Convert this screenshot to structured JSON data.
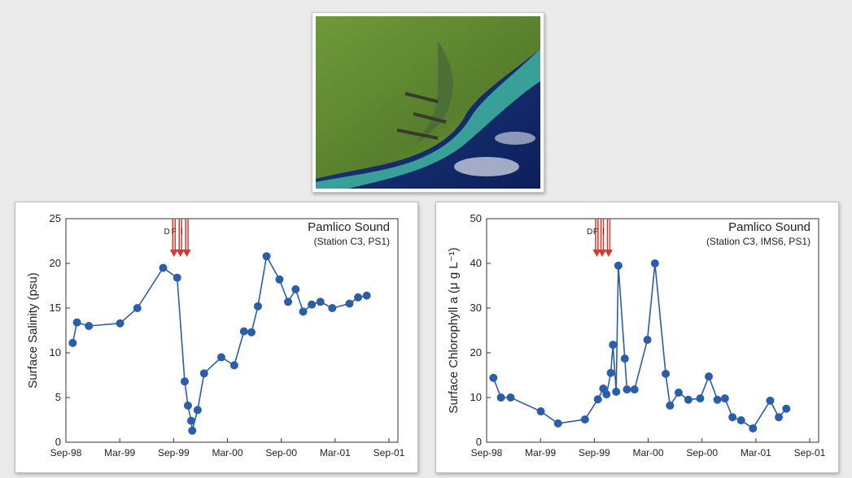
{
  "chart_data": [
    {
      "type": "line",
      "title": "Pamlico Sound",
      "subtitle": "(Station C3, PS1)",
      "ylabel": "Surface Salinity (psu)",
      "x": [
        1998.73,
        1998.77,
        1998.88,
        1999.17,
        1999.33,
        1999.57,
        1999.7,
        1999.77,
        1999.8,
        1999.83,
        1999.84,
        1999.89,
        1999.95,
        2000.11,
        2000.23,
        2000.32,
        2000.39,
        2000.45,
        2000.53,
        2000.65,
        2000.73,
        2000.8,
        2000.87,
        2000.95,
        2001.03,
        2001.14,
        2001.3,
        2001.38,
        2001.46
      ],
      "values": [
        11.1,
        13.4,
        13.0,
        13.3,
        15.0,
        19.5,
        18.4,
        6.8,
        4.1,
        2.4,
        1.3,
        3.6,
        7.7,
        9.5,
        8.6,
        12.4,
        12.3,
        15.2,
        20.8,
        18.2,
        15.7,
        17.1,
        14.6,
        15.4,
        15.7,
        15.0,
        15.5,
        16.2,
        16.4
      ],
      "color": "#2a5ea8",
      "xlim": [
        1998.667,
        2001.75
      ],
      "xticks": [
        {
          "value": 1998.667,
          "label": "Sep-98"
        },
        {
          "value": 1999.167,
          "label": "Mar-99"
        },
        {
          "value": 1999.667,
          "label": "Sep-99"
        },
        {
          "value": 2000.167,
          "label": "Mar-00"
        },
        {
          "value": 2000.667,
          "label": "Sep-00"
        },
        {
          "value": 2001.167,
          "label": "Mar-01"
        },
        {
          "value": 2001.667,
          "label": "Sep-01"
        }
      ],
      "ylim": [
        0,
        25
      ],
      "yticks": [
        0,
        5,
        10,
        15,
        20,
        25
      ],
      "annotations": [
        {
          "text": "D",
          "x": 1999.67
        },
        {
          "text": "F",
          "x": 1999.73
        },
        {
          "text": "I",
          "x": 1999.79
        }
      ]
    },
    {
      "type": "line",
      "title": "Pamlico Sound",
      "subtitle": "(Station C3, IMS6, PS1)",
      "ylabel": "Surface Chlorophyll a (μ g L⁻¹)",
      "x": [
        1998.73,
        1998.8,
        1998.89,
        1999.17,
        1999.33,
        1999.58,
        1999.7,
        1999.75,
        1999.78,
        1999.82,
        1999.84,
        1999.87,
        1999.89,
        1999.95,
        1999.97,
        2000.04,
        2000.16,
        2000.23,
        2000.33,
        2000.37,
        2000.45,
        2000.54,
        2000.65,
        2000.73,
        2000.81,
        2000.88,
        2000.95,
        2001.03,
        2001.14,
        2001.3,
        2001.38,
        2001.45
      ],
      "values": [
        14.4,
        10.0,
        10.0,
        6.9,
        4.2,
        5.1,
        9.6,
        12.0,
        10.7,
        15.5,
        21.8,
        11.3,
        39.5,
        18.7,
        11.8,
        11.8,
        22.9,
        40.0,
        15.3,
        8.2,
        11.1,
        9.5,
        9.8,
        14.7,
        9.5,
        9.8,
        5.6,
        4.9,
        3.1,
        9.3,
        5.6,
        7.5
      ],
      "color": "#2a5ea8",
      "xlim": [
        1998.667,
        2001.75
      ],
      "xticks": [
        {
          "value": 1998.667,
          "label": "Sep-98"
        },
        {
          "value": 1999.167,
          "label": "Mar-99"
        },
        {
          "value": 1999.667,
          "label": "Sep-99"
        },
        {
          "value": 2000.167,
          "label": "Mar-00"
        },
        {
          "value": 2000.667,
          "label": "Sep-00"
        },
        {
          "value": 2001.167,
          "label": "Mar-01"
        },
        {
          "value": 2001.667,
          "label": "Sep-01"
        }
      ],
      "ylim": [
        0,
        50
      ],
      "yticks": [
        0,
        10,
        20,
        30,
        40,
        50
      ],
      "annotations": [
        {
          "text": "D",
          "x": 1999.69
        },
        {
          "text": "F",
          "x": 1999.74
        },
        {
          "text": "I",
          "x": 1999.8
        }
      ]
    }
  ]
}
